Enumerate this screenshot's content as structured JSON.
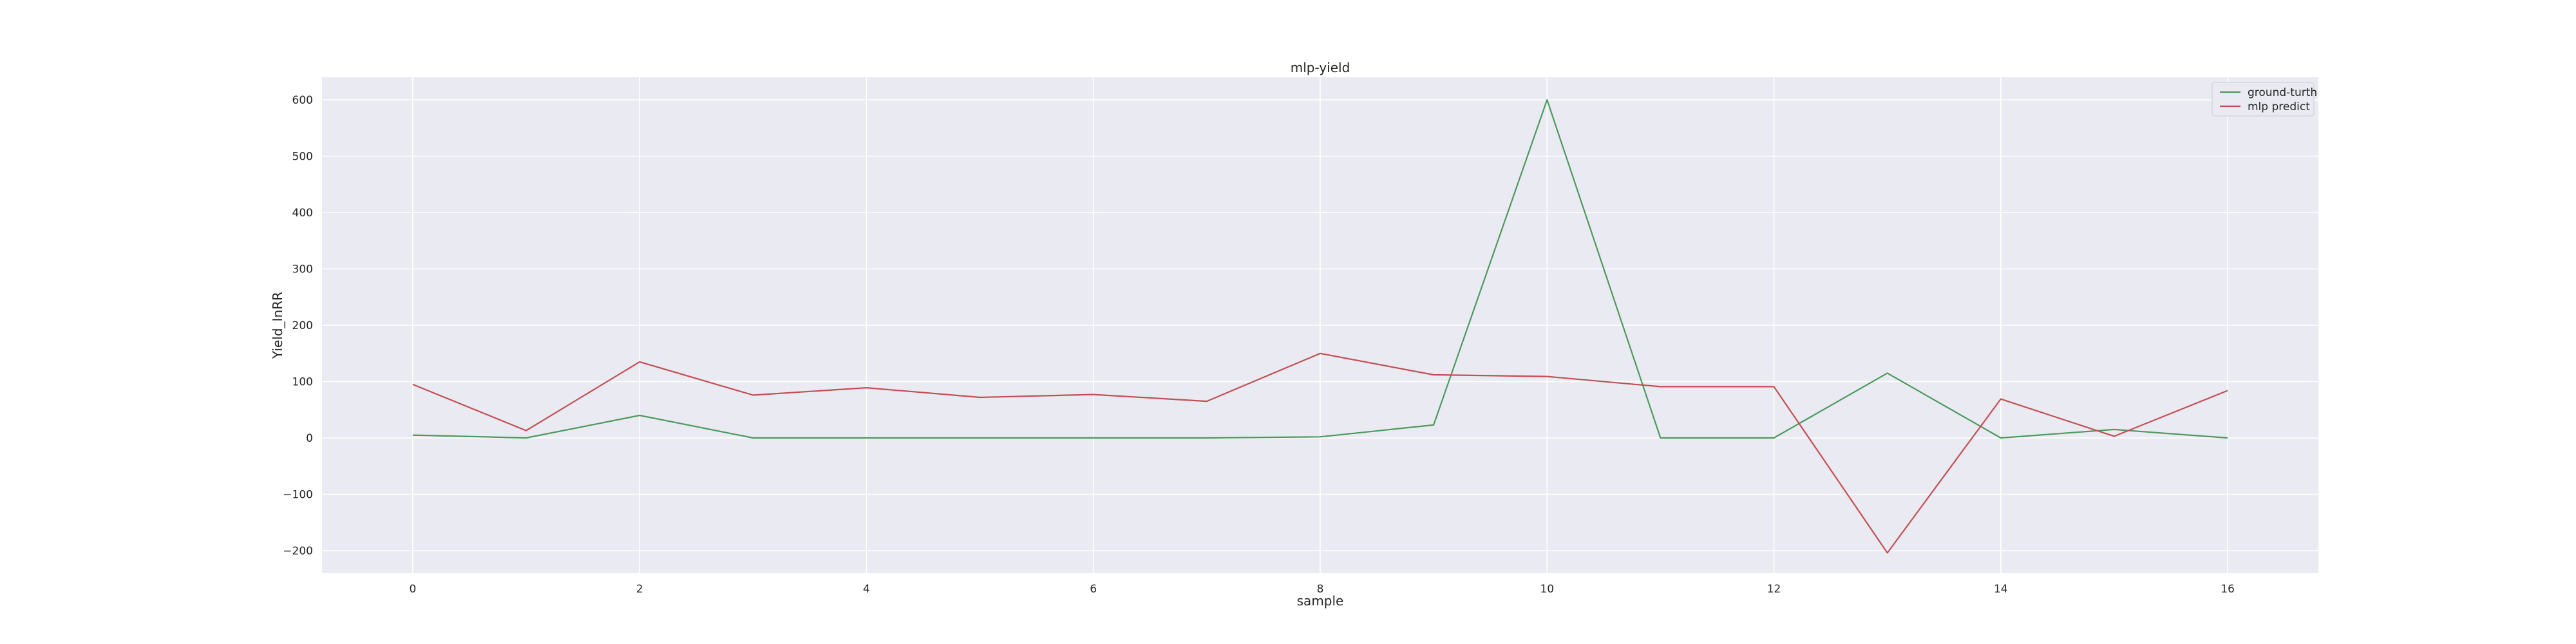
{
  "chart_data": {
    "type": "line",
    "title": "mlp-yield",
    "xlabel": "sample",
    "ylabel": "Yield_InRR",
    "x": [
      0,
      1,
      2,
      3,
      4,
      5,
      6,
      7,
      8,
      9,
      10,
      11,
      12,
      13,
      14,
      15,
      16
    ],
    "xlim": [
      -0.8,
      16.8
    ],
    "ylim": [
      -240,
      640
    ],
    "xticks": [
      0,
      2,
      4,
      6,
      8,
      10,
      12,
      14,
      16
    ],
    "yticks": [
      -200,
      -100,
      0,
      100,
      200,
      300,
      400,
      500,
      600
    ],
    "ytick_labels": [
      "−200",
      "−100",
      "0",
      "100",
      "200",
      "300",
      "400",
      "500",
      "600"
    ],
    "grid": true,
    "legend_position": "top-right",
    "series": [
      {
        "name": "ground-turth",
        "color": "#4c9a5e",
        "values": [
          5,
          0,
          40,
          0,
          0,
          0,
          0,
          0,
          2,
          23,
          600,
          0,
          0,
          115,
          0,
          15,
          0
        ]
      },
      {
        "name": "mlp predict",
        "color": "#c44e52",
        "values": [
          95,
          13,
          135,
          76,
          89,
          72,
          77,
          65,
          150,
          112,
          109,
          91,
          91,
          -204,
          69,
          3,
          84
        ]
      }
    ]
  }
}
